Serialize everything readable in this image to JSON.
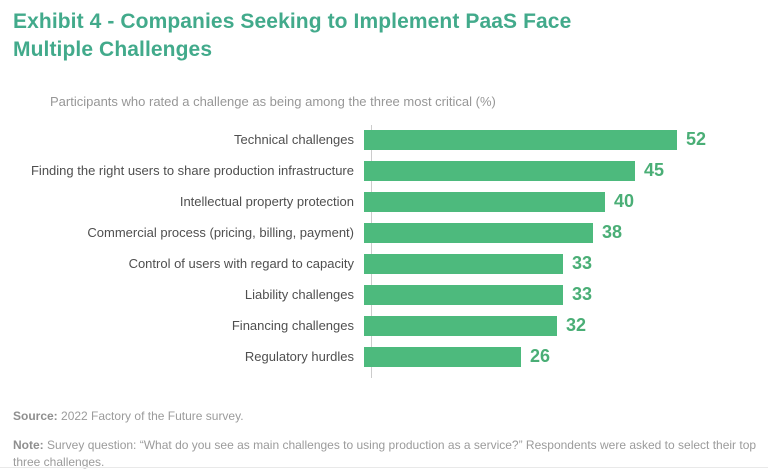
{
  "exhibit": {
    "title": "Exhibit 4 - Companies Seeking to Implement PaaS Face Multiple Challenges",
    "subtitle": "Participants who rated a challenge as being among the three most critical (%)"
  },
  "chart_data": {
    "type": "bar",
    "orientation": "horizontal",
    "title": "Participants who rated a challenge as being among the three most critical (%)",
    "categories": [
      "Technical challenges",
      "Finding the right users to share production infrastructure",
      "Intellectual property protection",
      "Commercial process (pricing, billing, payment)",
      "Control of users with regard to capacity",
      "Liability challenges",
      "Financing challenges",
      "Regulatory hurdles"
    ],
    "values": [
      52,
      45,
      40,
      38,
      33,
      33,
      32,
      26
    ],
    "xlim": [
      0,
      52
    ],
    "grid": false,
    "legend": "none",
    "value_labels_shown": true,
    "colors": {
      "bar": "#4dba7d",
      "value_label": "#4aae76",
      "axis_line": "#cccccc",
      "category_label": "#4f4f4f"
    }
  },
  "footer": {
    "source_label": "Source:",
    "source_text": " 2022 Factory of the Future survey.",
    "note_label": "Note:",
    "note_text": " Survey question: “What do you see as main challenges to using production as a service?” Respondents were asked to select their top three challenges."
  },
  "colors": {
    "title": "#42aa8b",
    "subtitle": "#979797",
    "footer_text": "#9b9b9b"
  }
}
